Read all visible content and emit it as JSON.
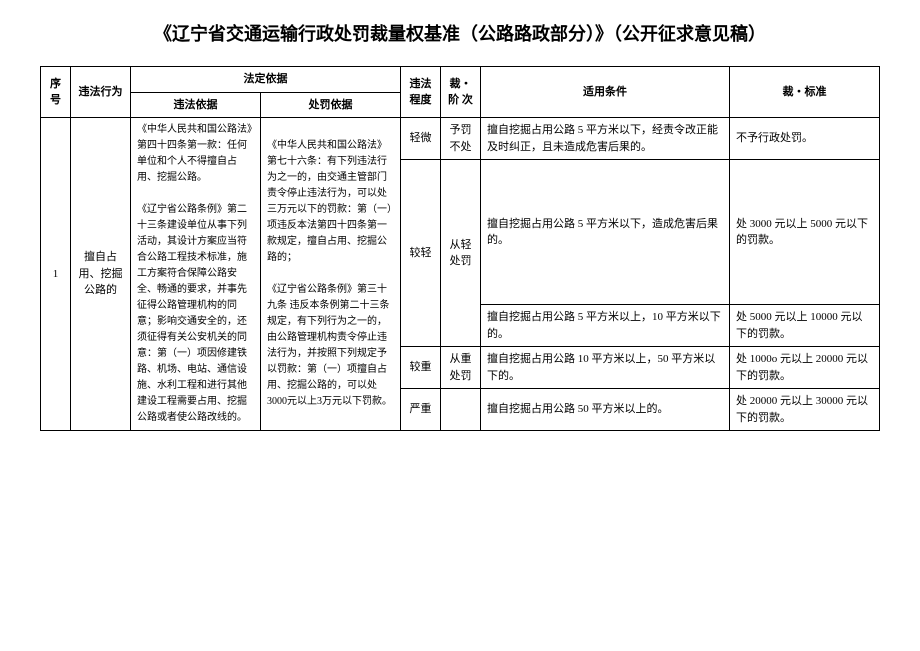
{
  "title": "《辽宁省交通运输行政处罚裁量权基准（公路路政部分）》（公开征求意见稿）",
  "headers": {
    "seq": "序号",
    "act": "违法行为",
    "legal_basis": "法定依据",
    "basis_violation": "违法依据",
    "basis_penalty": "处罚依据",
    "level": "违法程度",
    "stage": "裁・阶 次",
    "condition": "适用条件",
    "standard": "裁・标准"
  },
  "row": {
    "seq": "1",
    "act": "擅自占用、挖掘公路的",
    "basis_violation": "《中华人民共和国公路法》第四十四条第一款：任何单位和个人不得擅自占用、挖掘公路。\n\n《辽宁省公路条例》第二十三条建设单位从事下列活动，其设计方案应当符合公路工程技术标准，施工方案符合保障公路安全、畅通的要求，并事先征得公路管理机构的同意；影响交通安全的，还须征得有关公安机关的同意：第（一）项因修建铁路、机场、电站、通信设施、水利工程和进行其他建设工程需要占用、挖掘公路或者使公路改线的。",
    "basis_penalty": "《中华人民共和国公路法》第七十六条：有下列违法行为之一的，由交通主管部门责令停止违法行为，可以处三万元以下的罚款：第（一）项违反本法第四十四条第一款规定，擅自占用、挖掘公路的；\n\n《辽宁省公路条例》第三十九条 违反本条例第二十三条规定，有下列行为之一的，由公路管理机构责令停止违法行为，并按照下列规定予以罚款：第（一）项擅自占用、挖掘公路的，可以处3000元以上3万元以下罚款。",
    "levels": [
      {
        "level": "轻微",
        "stage": "予罚不处",
        "condition": "擅自挖掘占用公路 5 平方米以下，经责令改正能及时纠正，且未造成危害后果的。",
        "standard": "不予行政处罚。"
      },
      {
        "level": "较轻",
        "stage": "从轻处罚",
        "items": [
          {
            "condition": "擅自挖掘占用公路 5 平方米以下，造成危害后果的。",
            "standard": "处 3000 元以上 5000 元以下的罚款。"
          },
          {
            "condition": "擅自挖掘占用公路 5 平方米以上，10 平方米以下的。",
            "standard": "处 5000 元以上 10000 元以下的罚款。"
          }
        ]
      },
      {
        "level": "较重",
        "stage": "从重处罚",
        "condition": "擅自挖掘占用公路 10 平方米以上，50 平方米以下的。",
        "standard": "处 1000o 元以上 20000 元以下的罚款。"
      },
      {
        "level": "严重",
        "stage": "",
        "condition": "擅自挖掘占用公路 50 平方米以上的。",
        "standard": "处 20000 元以上 30000 元以下的罚款。"
      }
    ]
  }
}
